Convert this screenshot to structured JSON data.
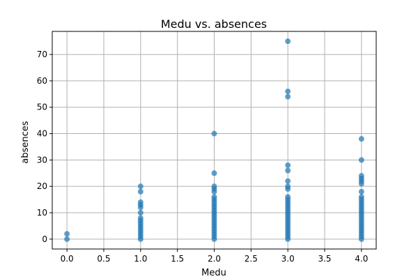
{
  "chart_data": {
    "type": "scatter",
    "title": "Medu vs. absences",
    "xlabel": "Medu",
    "ylabel": "absences",
    "xlim": [
      -0.2,
      4.2
    ],
    "ylim": [
      -3.75,
      78.75
    ],
    "xticks": [
      "0.0",
      "0.5",
      "1.0",
      "1.5",
      "2.0",
      "2.5",
      "3.0",
      "3.5",
      "4.0"
    ],
    "yticks": [
      "0",
      "10",
      "20",
      "30",
      "40",
      "50",
      "60",
      "70"
    ],
    "grid": true,
    "marker_color": "#1f77b4",
    "marker_alpha": 0.7,
    "series": [
      {
        "points": [
          {
            "x": 0,
            "y": 0
          },
          {
            "x": 0,
            "y": 2
          },
          {
            "x": 1,
            "y": 0
          },
          {
            "x": 1,
            "y": 1
          },
          {
            "x": 1,
            "y": 2
          },
          {
            "x": 1,
            "y": 3
          },
          {
            "x": 1,
            "y": 4
          },
          {
            "x": 1,
            "y": 5
          },
          {
            "x": 1,
            "y": 6
          },
          {
            "x": 1,
            "y": 7
          },
          {
            "x": 1,
            "y": 8
          },
          {
            "x": 1,
            "y": 10
          },
          {
            "x": 1,
            "y": 12
          },
          {
            "x": 1,
            "y": 13
          },
          {
            "x": 1,
            "y": 14
          },
          {
            "x": 1,
            "y": 18
          },
          {
            "x": 1,
            "y": 20
          },
          {
            "x": 2,
            "y": 0
          },
          {
            "x": 2,
            "y": 1
          },
          {
            "x": 2,
            "y": 2
          },
          {
            "x": 2,
            "y": 3
          },
          {
            "x": 2,
            "y": 4
          },
          {
            "x": 2,
            "y": 5
          },
          {
            "x": 2,
            "y": 6
          },
          {
            "x": 2,
            "y": 7
          },
          {
            "x": 2,
            "y": 8
          },
          {
            "x": 2,
            "y": 9
          },
          {
            "x": 2,
            "y": 10
          },
          {
            "x": 2,
            "y": 11
          },
          {
            "x": 2,
            "y": 12
          },
          {
            "x": 2,
            "y": 13
          },
          {
            "x": 2,
            "y": 14
          },
          {
            "x": 2,
            "y": 15
          },
          {
            "x": 2,
            "y": 16
          },
          {
            "x": 2,
            "y": 18
          },
          {
            "x": 2,
            "y": 19
          },
          {
            "x": 2,
            "y": 20
          },
          {
            "x": 2,
            "y": 25
          },
          {
            "x": 2,
            "y": 40
          },
          {
            "x": 3,
            "y": 0
          },
          {
            "x": 3,
            "y": 1
          },
          {
            "x": 3,
            "y": 2
          },
          {
            "x": 3,
            "y": 3
          },
          {
            "x": 3,
            "y": 4
          },
          {
            "x": 3,
            "y": 5
          },
          {
            "x": 3,
            "y": 6
          },
          {
            "x": 3,
            "y": 7
          },
          {
            "x": 3,
            "y": 8
          },
          {
            "x": 3,
            "y": 9
          },
          {
            "x": 3,
            "y": 10
          },
          {
            "x": 3,
            "y": 11
          },
          {
            "x": 3,
            "y": 12
          },
          {
            "x": 3,
            "y": 13
          },
          {
            "x": 3,
            "y": 14
          },
          {
            "x": 3,
            "y": 15
          },
          {
            "x": 3,
            "y": 16
          },
          {
            "x": 3,
            "y": 19
          },
          {
            "x": 3,
            "y": 20
          },
          {
            "x": 3,
            "y": 22
          },
          {
            "x": 3,
            "y": 26
          },
          {
            "x": 3,
            "y": 28
          },
          {
            "x": 3,
            "y": 54
          },
          {
            "x": 3,
            "y": 56
          },
          {
            "x": 3,
            "y": 75
          },
          {
            "x": 4,
            "y": 0
          },
          {
            "x": 4,
            "y": 1
          },
          {
            "x": 4,
            "y": 2
          },
          {
            "x": 4,
            "y": 3
          },
          {
            "x": 4,
            "y": 4
          },
          {
            "x": 4,
            "y": 5
          },
          {
            "x": 4,
            "y": 6
          },
          {
            "x": 4,
            "y": 7
          },
          {
            "x": 4,
            "y": 8
          },
          {
            "x": 4,
            "y": 9
          },
          {
            "x": 4,
            "y": 10
          },
          {
            "x": 4,
            "y": 11
          },
          {
            "x": 4,
            "y": 12
          },
          {
            "x": 4,
            "y": 13
          },
          {
            "x": 4,
            "y": 14
          },
          {
            "x": 4,
            "y": 15
          },
          {
            "x": 4,
            "y": 16
          },
          {
            "x": 4,
            "y": 18
          },
          {
            "x": 4,
            "y": 21
          },
          {
            "x": 4,
            "y": 22
          },
          {
            "x": 4,
            "y": 23
          },
          {
            "x": 4,
            "y": 24
          },
          {
            "x": 4,
            "y": 30
          },
          {
            "x": 4,
            "y": 38
          }
        ]
      }
    ]
  }
}
